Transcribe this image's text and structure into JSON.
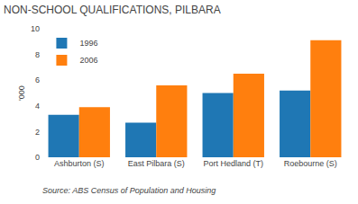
{
  "chart_data": {
    "type": "bar",
    "title": "NON-SCHOOL QUALIFICATIONS, PILBARA",
    "categories": [
      "Ashburton (S)",
      "East Pilbara (S)",
      "Port Hedland (T)",
      "Roebourne (S)"
    ],
    "series": [
      {
        "name": "1996",
        "values": [
          3.3,
          2.7,
          5.0,
          5.2
        ]
      },
      {
        "name": "2006",
        "values": [
          3.9,
          5.6,
          6.5,
          9.1
        ]
      }
    ],
    "ylabel": "'000",
    "ylim": [
      0,
      10
    ],
    "yticks": [
      0,
      2,
      4,
      6,
      8,
      10
    ],
    "annotations": [
      "Source: ABS Census of Population and Housing"
    ],
    "legend": "upper left",
    "grid": false
  }
}
